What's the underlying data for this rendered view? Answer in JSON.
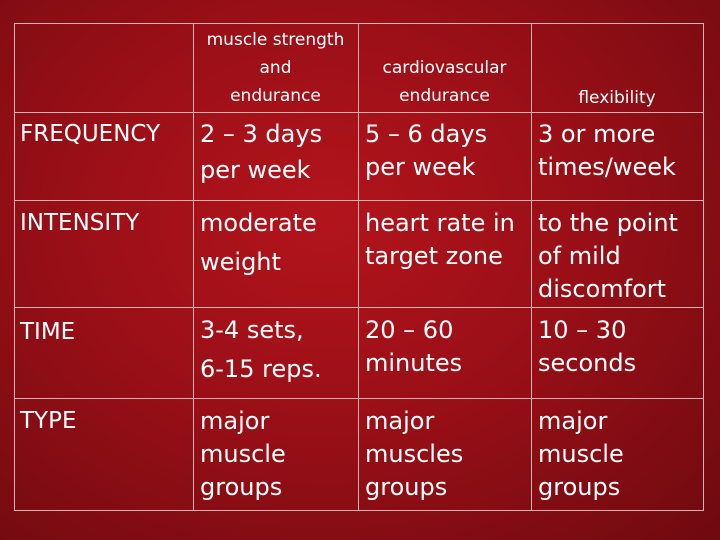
{
  "table": {
    "headers": {
      "strength": [
        "muscle strength",
        "and",
        "endurance"
      ],
      "cardio": [
        "cardiovascular",
        "endurance"
      ],
      "flex": [
        "flexibility"
      ]
    },
    "rows": {
      "frequency": {
        "label": "FREQUENCY",
        "strength": [
          "2 – 3 days",
          "per week"
        ],
        "cardio": [
          "5 – 6 days",
          "per week"
        ],
        "flex": [
          "3 or more",
          "times/week"
        ]
      },
      "intensity": {
        "label": "INTENSITY",
        "strength": [
          "moderate",
          "weight"
        ],
        "cardio": [
          "heart rate in",
          "target zone"
        ],
        "flex": [
          "to the point",
          "of mild",
          "discomfort"
        ]
      },
      "time": {
        "label": "TIME",
        "strength": [
          "3-4 sets,",
          "6-15 reps."
        ],
        "cardio": [
          "20 – 60",
          "minutes"
        ],
        "flex": [
          "10 – 30",
          "seconds"
        ]
      },
      "type": {
        "label": "TYPE",
        "strength": [
          "major",
          "muscle",
          "groups"
        ],
        "cardio": [
          "major",
          "muscles",
          "groups"
        ],
        "flex": [
          "major",
          "muscle",
          "groups"
        ]
      }
    }
  }
}
